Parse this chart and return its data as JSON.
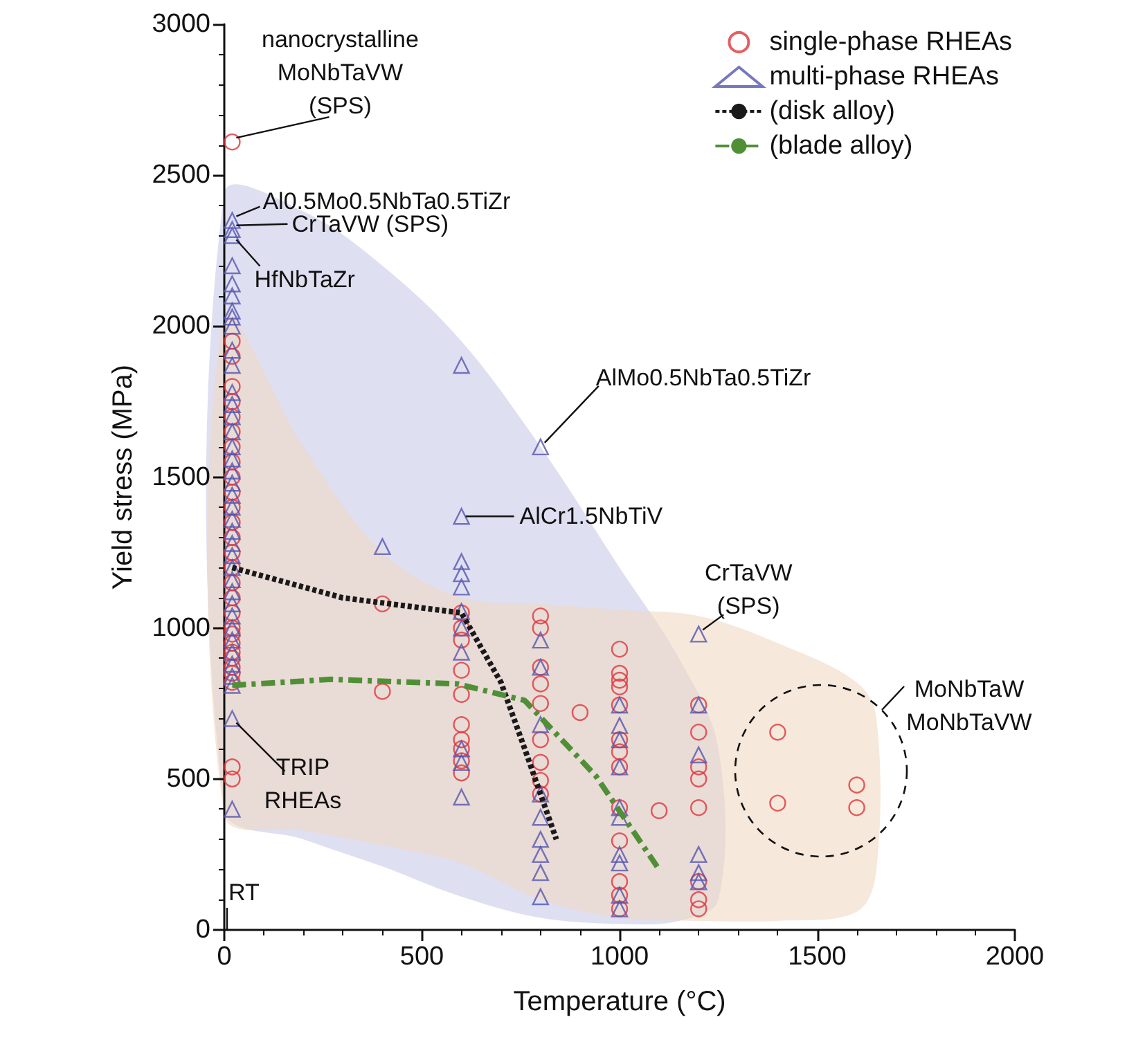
{
  "chart_data": {
    "type": "scatter",
    "xlabel": "Temperature (°C)",
    "ylabel": "Yield stress (MPa)",
    "xlim": [
      0,
      2000
    ],
    "xticks": [
      0,
      500,
      1000,
      1500,
      2000
    ],
    "ylim": [
      0,
      3000
    ],
    "yticks": [
      0,
      500,
      1000,
      1500,
      2000,
      2500,
      3000
    ],
    "grid": false,
    "legend": "top right",
    "series": [
      {
        "type": "area",
        "color": "#c9c9ea",
        "x": [
          0,
          200,
          400,
          600,
          800,
          1000,
          1150,
          1250
        ],
        "values": [
          null,
          null,
          null,
          null,
          null,
          null,
          null,
          null
        ],
        "lower": [
          400,
          300,
          210,
          110,
          40,
          20,
          30,
          100
        ],
        "upper": [
          2440,
          2380,
          2200,
          1950,
          1600,
          1200,
          900,
          600
        ]
      },
      {
        "type": "area",
        "color": "#f0d9c2",
        "x": [
          0,
          200,
          400,
          600,
          800,
          1000,
          1200,
          1400,
          1600,
          1650
        ],
        "values": [
          null,
          null,
          null,
          null,
          null,
          null,
          null,
          null,
          null,
          null
        ],
        "lower": [
          380,
          330,
          280,
          220,
          100,
          40,
          30,
          30,
          60,
          200
        ],
        "upper": [
          2030,
          1600,
          1250,
          1100,
          1080,
          1060,
          1040,
          950,
          820,
          700
        ]
      },
      {
        "name": "single-phase RHEAs",
        "marker": "circle",
        "color": "#e0353b",
        "x": [
          20,
          20,
          20,
          20,
          20,
          20,
          20,
          20,
          20,
          20,
          20,
          20,
          20,
          20,
          20,
          20,
          20,
          20,
          20,
          20,
          20,
          20,
          20,
          20,
          20,
          20,
          20,
          20,
          20,
          400,
          400,
          600,
          600,
          600,
          600,
          600,
          600,
          600,
          600,
          600,
          600,
          800,
          800,
          800,
          800,
          800,
          800,
          800,
          800,
          800,
          900,
          1000,
          1000,
          1000,
          1000,
          1000,
          1000,
          1000,
          1000,
          1000,
          1000,
          1000,
          1000,
          1000,
          1100,
          1200,
          1200,
          1200,
          1200,
          1200,
          1200,
          1200,
          1200,
          1400,
          1400,
          1600,
          1600
        ],
        "values": [
          2610,
          1950,
          1900,
          1800,
          1750,
          1700,
          1650,
          1600,
          1550,
          1500,
          1450,
          1400,
          1350,
          1300,
          1250,
          1200,
          1150,
          1100,
          1050,
          1000,
          980,
          950,
          920,
          900,
          870,
          850,
          820,
          540,
          500,
          1080,
          790,
          1050,
          1000,
          960,
          860,
          780,
          680,
          630,
          600,
          560,
          520,
          1040,
          1000,
          870,
          815,
          750,
          630,
          555,
          495,
          450,
          720,
          930,
          850,
          827,
          805,
          745,
          630,
          590,
          540,
          405,
          295,
          160,
          115,
          70,
          395,
          745,
          655,
          540,
          500,
          405,
          160,
          100,
          70,
          655,
          420,
          480,
          405
        ]
      },
      {
        "name": "multi-phase RHEAs",
        "marker": "triangle",
        "color": "#5555b0",
        "x": [
          20,
          20,
          20,
          20,
          20,
          20,
          20,
          20,
          20,
          20,
          20,
          20,
          20,
          20,
          20,
          20,
          20,
          20,
          20,
          20,
          20,
          20,
          20,
          20,
          20,
          20,
          20,
          20,
          20,
          20,
          20,
          20,
          20,
          20,
          20,
          20,
          20,
          20,
          400,
          600,
          600,
          600,
          600,
          600,
          600,
          600,
          600,
          600,
          600,
          600,
          800,
          800,
          800,
          800,
          800,
          800,
          800,
          800,
          800,
          800,
          1000,
          1000,
          1000,
          1000,
          1000,
          1000,
          1000,
          1000,
          1000,
          1000,
          1200,
          1200,
          1200,
          1200,
          1200,
          1200
        ],
        "values": [
          2350,
          2320,
          2300,
          2200,
          2140,
          2100,
          2050,
          2030,
          2000,
          1920,
          1870,
          1780,
          1740,
          1700,
          1650,
          1600,
          1560,
          1520,
          1480,
          1440,
          1400,
          1360,
          1320,
          1280,
          1240,
          1200,
          1160,
          1120,
          1080,
          1040,
          1000,
          960,
          920,
          880,
          840,
          810,
          700,
          400,
          1270,
          1870,
          1370,
          1220,
          1180,
          1136,
          1055,
          1000,
          920,
          600,
          555,
          440,
          1600,
          960,
          870,
          680,
          450,
          373,
          300,
          250,
          190,
          110,
          745,
          677,
          630,
          540,
          405,
          373,
          250,
          222,
          115,
          70,
          980,
          745,
          580,
          250,
          190,
          160
        ]
      },
      {
        "name": "(disk alloy)",
        "type": "line",
        "marker": "none",
        "line_style": "dotted",
        "color": "#1a1a1a",
        "x": [
          20,
          300,
          600,
          700,
          760,
          800,
          840
        ],
        "values": [
          1200,
          1100,
          1050,
          820,
          600,
          450,
          300
        ]
      },
      {
        "name": "(blade alloy)",
        "type": "line",
        "marker": "none",
        "line_style": "dashed",
        "color": "#4f8f35",
        "x": [
          20,
          270,
          590,
          760,
          940,
          1100
        ],
        "values": [
          810,
          830,
          815,
          760,
          510,
          200
        ]
      }
    ],
    "annotations": [
      {
        "text": "nanocrystalline\nMoNbTaVW\n(SPS)",
        "x": 20,
        "y": 2610
      },
      {
        "text": "Al0.5Mo0.5NbTa0.5TiZr",
        "x": 20,
        "y": 2350
      },
      {
        "text": "CrTaVW (SPS)",
        "x": 20,
        "y": 2320
      },
      {
        "text": "HfNbTaZr",
        "x": 20,
        "y": 2300
      },
      {
        "text": "AlMo0.5NbTa0.5TiZr",
        "x": 800,
        "y": 1600
      },
      {
        "text": "AlCr1.5NbTiV",
        "x": 600,
        "y": 1370
      },
      {
        "text": "CrTaVW\n(SPS)",
        "x": 1200,
        "y": 980
      },
      "MoNbTaW\nMoNbTaVW",
      {
        "text": "TRIP\nRHEAs",
        "x": 20,
        "y": 700
      },
      "RT"
    ]
  }
}
